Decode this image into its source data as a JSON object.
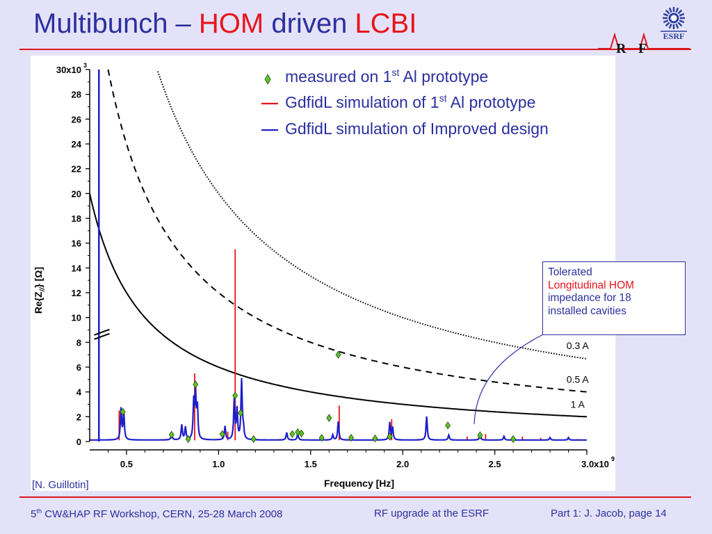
{
  "slide": {
    "title_part1": "Multibunch – ",
    "title_part2": "HOM",
    "title_part3": " driven ",
    "title_part4": "LCBI",
    "colors": {
      "title_blue": "#2b2f9e",
      "accent_red": "#e8141b",
      "background": "#e4e2f8"
    }
  },
  "logos": {
    "rf_r": "R",
    "rf_f": "F",
    "esrf_text": "ESRF",
    "esrf_icon": "esrf-sun-logo-icon"
  },
  "annotation": {
    "line1": "Tolerated",
    "line2": "Longitudinal HOM",
    "line3": "impedance for 18",
    "line4": "installed cavities"
  },
  "credit": "[N. Guillotin]",
  "footer": {
    "left_num": "5",
    "left_sup": "th",
    "left_rest": " CW&HAP RF Workshop, CERN, 25-28 March 2008",
    "center": "RF upgrade at the ESRF",
    "right": "Part 1: J. Jacob,  page 14"
  },
  "chart_data": {
    "type": "line",
    "xlabel": "Frequency [Hz]",
    "ylabel_prefix": "Re{Z",
    "ylabel_sub": "//",
    "ylabel_suffix": "} [Ω]",
    "xlim": [
      0.3,
      3.0
    ],
    "ylim": [
      0,
      30
    ],
    "xscale_label": "x10",
    "xscale_exp": "9",
    "yscale_label": "x10",
    "yscale_exp": "3",
    "x_ticks": [
      {
        "value": 0.5,
        "label": "0.5"
      },
      {
        "value": 1.0,
        "label": "1.0"
      },
      {
        "value": 1.5,
        "label": "1.5"
      },
      {
        "value": 2.0,
        "label": "2.0"
      },
      {
        "value": 2.5,
        "label": "2.5"
      },
      {
        "value": 3.0,
        "label": "3.0"
      }
    ],
    "y_ticks": [
      {
        "value": 0,
        "label": "0"
      },
      {
        "value": 2,
        "label": "2"
      },
      {
        "value": 4,
        "label": "4"
      },
      {
        "value": 6,
        "label": "6"
      },
      {
        "value": 8,
        "label": "8"
      },
      {
        "value": 10,
        "label": "10"
      },
      {
        "value": 12,
        "label": "12"
      },
      {
        "value": 14,
        "label": "14"
      },
      {
        "value": 16,
        "label": "16"
      },
      {
        "value": 18,
        "label": "18"
      },
      {
        "value": 20,
        "label": "20"
      },
      {
        "value": 22,
        "label": "22"
      },
      {
        "value": 24,
        "label": "24"
      },
      {
        "value": 26,
        "label": "26"
      },
      {
        "value": 28,
        "label": "28"
      },
      {
        "value": 30,
        "label": "30"
      }
    ],
    "axis_break": {
      "y": 8.7,
      "x": 0.37
    },
    "legend": [
      {
        "marker": "diamond",
        "text": "measured on 1",
        "sup": "st",
        "text2": " Al prototype"
      },
      {
        "marker": "red-line",
        "text": "GdfidL simulation of 1",
        "sup": "st",
        "text2": " Al prototype"
      },
      {
        "marker": "blue-line",
        "text": "GdfidL simulation of Improved design",
        "sup": "",
        "text2": ""
      }
    ],
    "threshold_curves": [
      {
        "label": "1 A",
        "current_A": 1.0,
        "style": "solid",
        "coef": 6.0,
        "x_start": 0.3
      },
      {
        "label": "0.5 A",
        "current_A": 0.5,
        "style": "dashed",
        "coef": 12.0,
        "x_start": 0.4
      },
      {
        "label": "0.3 A",
        "current_A": 0.3,
        "style": "dotted",
        "coef": 20.0,
        "x_start": 0.67
      }
    ],
    "blue_vertical": {
      "x": 0.35,
      "y_top": 30
    },
    "blue_peaks": [
      [
        0.47,
        2.5
      ],
      [
        0.485,
        2.2
      ],
      [
        0.745,
        0.5
      ],
      [
        0.8,
        1.2
      ],
      [
        0.82,
        1.0
      ],
      [
        0.865,
        3.0
      ],
      [
        0.875,
        3.5
      ],
      [
        0.885,
        2.5
      ],
      [
        1.035,
        1.1
      ],
      [
        1.085,
        3.2
      ],
      [
        1.1,
        2.4
      ],
      [
        1.125,
        4.8
      ],
      [
        1.135,
        0.8
      ],
      [
        1.37,
        0.6
      ],
      [
        1.43,
        0.5
      ],
      [
        1.62,
        0.4
      ],
      [
        1.65,
        1.5
      ],
      [
        1.93,
        1.4
      ],
      [
        1.945,
        1.0
      ],
      [
        2.13,
        1.9
      ],
      [
        2.25,
        0.4
      ],
      [
        2.42,
        0.5
      ],
      [
        2.55,
        0.3
      ],
      [
        2.8,
        0.2
      ],
      [
        2.9,
        0.2
      ]
    ],
    "red_peaks": [
      [
        0.46,
        2.5
      ],
      [
        0.87,
        5.5
      ],
      [
        1.09,
        15.5
      ],
      [
        1.05,
        0.8
      ],
      [
        1.655,
        2.9
      ],
      [
        1.94,
        1.8
      ],
      [
        2.35,
        0.4
      ],
      [
        2.45,
        0.6
      ],
      [
        2.65,
        0.4
      ],
      [
        2.75,
        0.3
      ],
      [
        2.95,
        0.2
      ]
    ],
    "measured": [
      [
        0.48,
        2.4
      ],
      [
        0.745,
        0.55
      ],
      [
        0.835,
        0.2
      ],
      [
        0.875,
        4.6
      ],
      [
        1.02,
        0.6
      ],
      [
        1.09,
        3.7
      ],
      [
        1.12,
        2.3
      ],
      [
        1.19,
        0.2
      ],
      [
        1.4,
        0.6
      ],
      [
        1.43,
        0.75
      ],
      [
        1.45,
        0.65
      ],
      [
        1.56,
        0.3
      ],
      [
        1.6,
        1.9
      ],
      [
        1.65,
        7.0
      ],
      [
        1.72,
        0.3
      ],
      [
        1.85,
        0.25
      ],
      [
        1.93,
        0.4
      ],
      [
        2.245,
        1.3
      ],
      [
        2.42,
        0.5
      ],
      [
        2.6,
        0.2
      ]
    ]
  }
}
